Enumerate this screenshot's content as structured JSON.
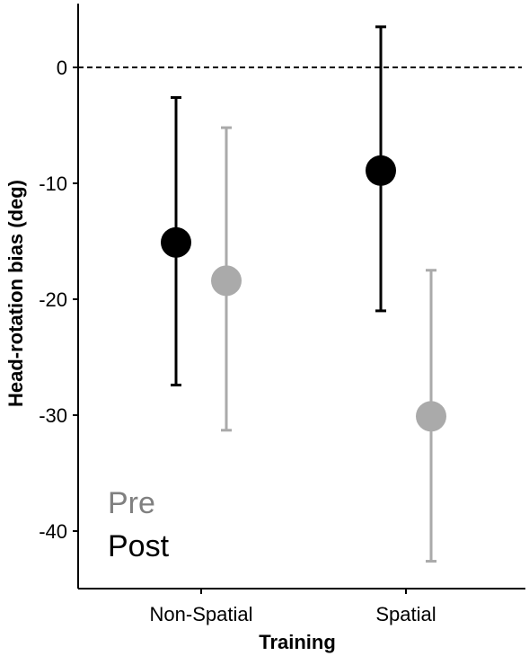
{
  "chart_data": {
    "type": "scatter",
    "subtype": "point-with-error-bars",
    "title": "",
    "xlabel": "Training",
    "ylabel": "Head-rotation bias (deg)",
    "categories": [
      "Non-Spatial",
      "Spatial"
    ],
    "ylim": [
      -45,
      5.5
    ],
    "yticks": [
      0,
      -10,
      -20,
      -30,
      -40
    ],
    "ytick_labels": [
      "0",
      "-10",
      "-20",
      "-30",
      "-40"
    ],
    "reference_line": {
      "y": 0,
      "style": "dashed"
    },
    "grid": false,
    "legend_position": "bottom-left",
    "series": [
      {
        "name": "Post",
        "color": "#000000",
        "values": [
          -15.1,
          -8.9
        ],
        "error_low": [
          -27.4,
          -21.0
        ],
        "error_high": [
          -2.6,
          3.5
        ]
      },
      {
        "name": "Pre",
        "color": "#aaaaaa",
        "values": [
          -18.4,
          -30.1
        ],
        "error_low": [
          -31.3,
          -42.6
        ],
        "error_high": [
          -5.2,
          -17.5
        ]
      }
    ],
    "legend": [
      {
        "label": "Pre",
        "color": "#808080"
      },
      {
        "label": "Post",
        "color": "#000000"
      }
    ]
  }
}
